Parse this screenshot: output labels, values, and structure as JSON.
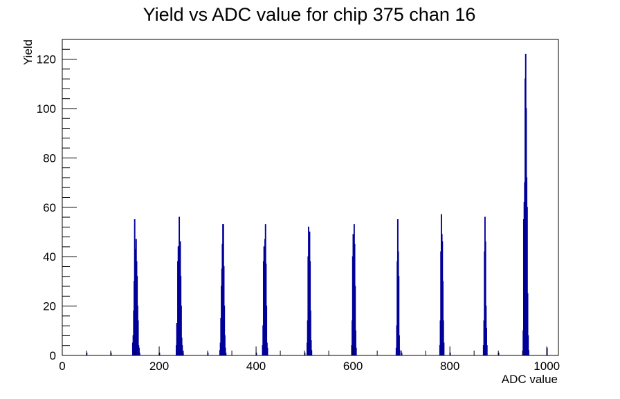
{
  "chart_data": {
    "type": "histogram",
    "title": "Yield vs ADC value for chip 375 chan 16",
    "xlabel": "ADC value",
    "ylabel": "Yield",
    "xlim": [
      0,
      1024
    ],
    "ylim": [
      0,
      128
    ],
    "x_ticks": [
      0,
      200,
      400,
      600,
      800,
      1000
    ],
    "y_ticks": [
      0,
      20,
      40,
      60,
      80,
      100,
      120
    ],
    "grid": false,
    "line_color": "#000099",
    "series": [
      {
        "points": [
          [
            50,
            1
          ],
          [
            100,
            1
          ],
          [
            200,
            1
          ],
          [
            300,
            1
          ],
          [
            400,
            1
          ],
          [
            500,
            1
          ],
          [
            600,
            1
          ],
          [
            700,
            1
          ],
          [
            800,
            1
          ],
          [
            900,
            1
          ],
          [
            1000,
            3
          ],
          [
            145,
            5
          ],
          [
            146,
            8
          ],
          [
            147,
            18
          ],
          [
            148,
            30
          ],
          [
            149,
            55
          ],
          [
            150,
            43
          ],
          [
            151,
            26
          ],
          [
            152,
            47
          ],
          [
            153,
            38
          ],
          [
            154,
            32
          ],
          [
            155,
            20
          ],
          [
            156,
            14
          ],
          [
            157,
            4
          ],
          [
            158,
            3
          ],
          [
            159,
            1
          ],
          [
            235,
            4
          ],
          [
            236,
            13
          ],
          [
            237,
            8
          ],
          [
            238,
            38
          ],
          [
            239,
            44
          ],
          [
            240,
            40
          ],
          [
            241,
            56
          ],
          [
            242,
            35
          ],
          [
            243,
            46
          ],
          [
            244,
            32
          ],
          [
            245,
            20
          ],
          [
            246,
            7
          ],
          [
            247,
            4
          ],
          [
            248,
            1
          ],
          [
            325,
            2
          ],
          [
            326,
            5
          ],
          [
            327,
            15
          ],
          [
            328,
            28
          ],
          [
            329,
            35
          ],
          [
            330,
            45
          ],
          [
            331,
            53
          ],
          [
            332,
            53
          ],
          [
            333,
            36
          ],
          [
            334,
            20
          ],
          [
            335,
            8
          ],
          [
            336,
            3
          ],
          [
            337,
            1
          ],
          [
            413,
            4
          ],
          [
            414,
            12
          ],
          [
            415,
            38
          ],
          [
            416,
            44
          ],
          [
            417,
            36
          ],
          [
            418,
            47
          ],
          [
            419,
            53
          ],
          [
            420,
            37
          ],
          [
            421,
            20
          ],
          [
            422,
            5
          ],
          [
            423,
            3
          ],
          [
            505,
            5
          ],
          [
            506,
            14
          ],
          [
            507,
            40
          ],
          [
            508,
            52
          ],
          [
            509,
            45
          ],
          [
            510,
            50
          ],
          [
            511,
            38
          ],
          [
            512,
            18
          ],
          [
            513,
            6
          ],
          [
            514,
            2
          ],
          [
            597,
            4
          ],
          [
            598,
            14
          ],
          [
            599,
            40
          ],
          [
            600,
            49
          ],
          [
            601,
            42
          ],
          [
            602,
            53
          ],
          [
            603,
            45
          ],
          [
            604,
            28
          ],
          [
            605,
            10
          ],
          [
            606,
            3
          ],
          [
            689,
            3
          ],
          [
            690,
            12
          ],
          [
            691,
            38
          ],
          [
            692,
            55
          ],
          [
            693,
            42
          ],
          [
            694,
            32
          ],
          [
            695,
            8
          ],
          [
            696,
            2
          ],
          [
            779,
            4
          ],
          [
            780,
            14
          ],
          [
            781,
            42
          ],
          [
            782,
            57
          ],
          [
            783,
            49
          ],
          [
            784,
            46
          ],
          [
            785,
            30
          ],
          [
            786,
            14
          ],
          [
            787,
            5
          ],
          [
            869,
            4
          ],
          [
            870,
            14
          ],
          [
            871,
            42
          ],
          [
            872,
            56
          ],
          [
            873,
            46
          ],
          [
            874,
            20
          ],
          [
            875,
            11
          ],
          [
            876,
            4
          ],
          [
            951,
            10
          ],
          [
            952,
            55
          ],
          [
            953,
            62
          ],
          [
            954,
            70
          ],
          [
            955,
            112
          ],
          [
            956,
            122
          ],
          [
            957,
            100
          ],
          [
            958,
            72
          ],
          [
            959,
            60
          ],
          [
            960,
            25
          ],
          [
            961,
            8
          ],
          [
            962,
            2
          ]
        ]
      }
    ]
  }
}
